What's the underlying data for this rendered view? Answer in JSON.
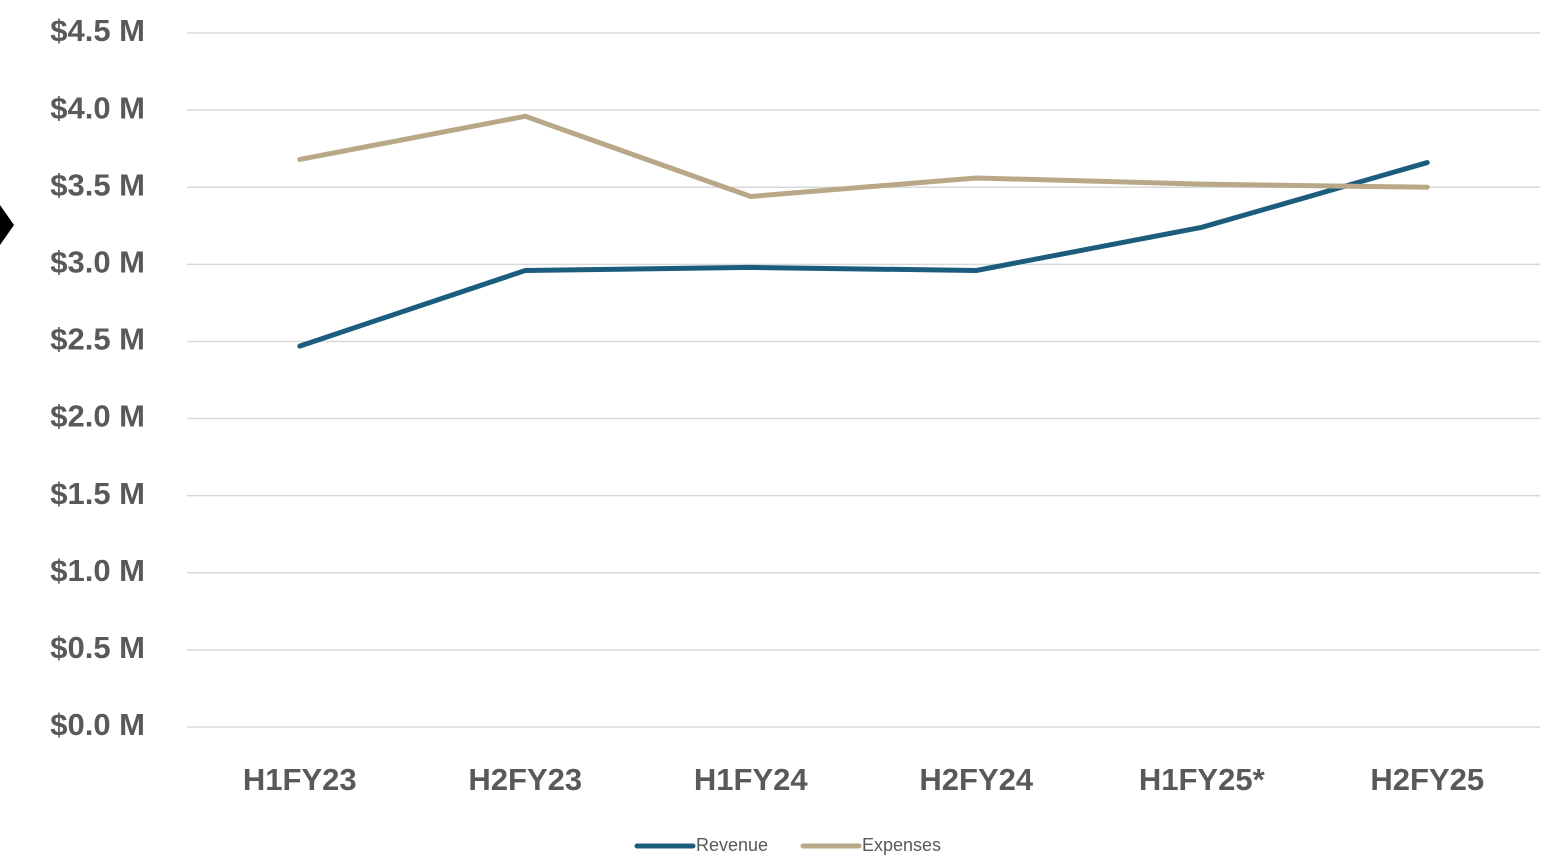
{
  "chart_data": {
    "type": "line",
    "categories": [
      "H1FY23",
      "H2FY23",
      "H1FY24",
      "H2FY24",
      "H1FY25*",
      "H2FY25"
    ],
    "series": [
      {
        "name": "Revenue",
        "color": "#1c5d7d",
        "values": [
          2.47,
          2.96,
          2.98,
          2.96,
          3.24,
          3.66
        ]
      },
      {
        "name": "Expenses",
        "color": "#b8a887",
        "values": [
          3.68,
          3.96,
          3.44,
          3.56,
          3.52,
          3.5
        ]
      }
    ],
    "ylim": [
      0,
      4.5
    ],
    "yticks": [
      {
        "value": 0,
        "label": "$0.0 M"
      },
      {
        "value": 0.5,
        "label": "$0.5 M"
      },
      {
        "value": 1,
        "label": "$1.0 M"
      },
      {
        "value": 1.5,
        "label": "$1.5 M"
      },
      {
        "value": 2,
        "label": "$2.0 M"
      },
      {
        "value": 2.5,
        "label": "$2.5 M"
      },
      {
        "value": 3,
        "label": "$3.0 M"
      },
      {
        "value": 3.5,
        "label": "$3.5 M"
      },
      {
        "value": 4,
        "label": "$4.0 M"
      },
      {
        "value": 4.5,
        "label": "$4.5 M"
      }
    ],
    "grid": true
  }
}
